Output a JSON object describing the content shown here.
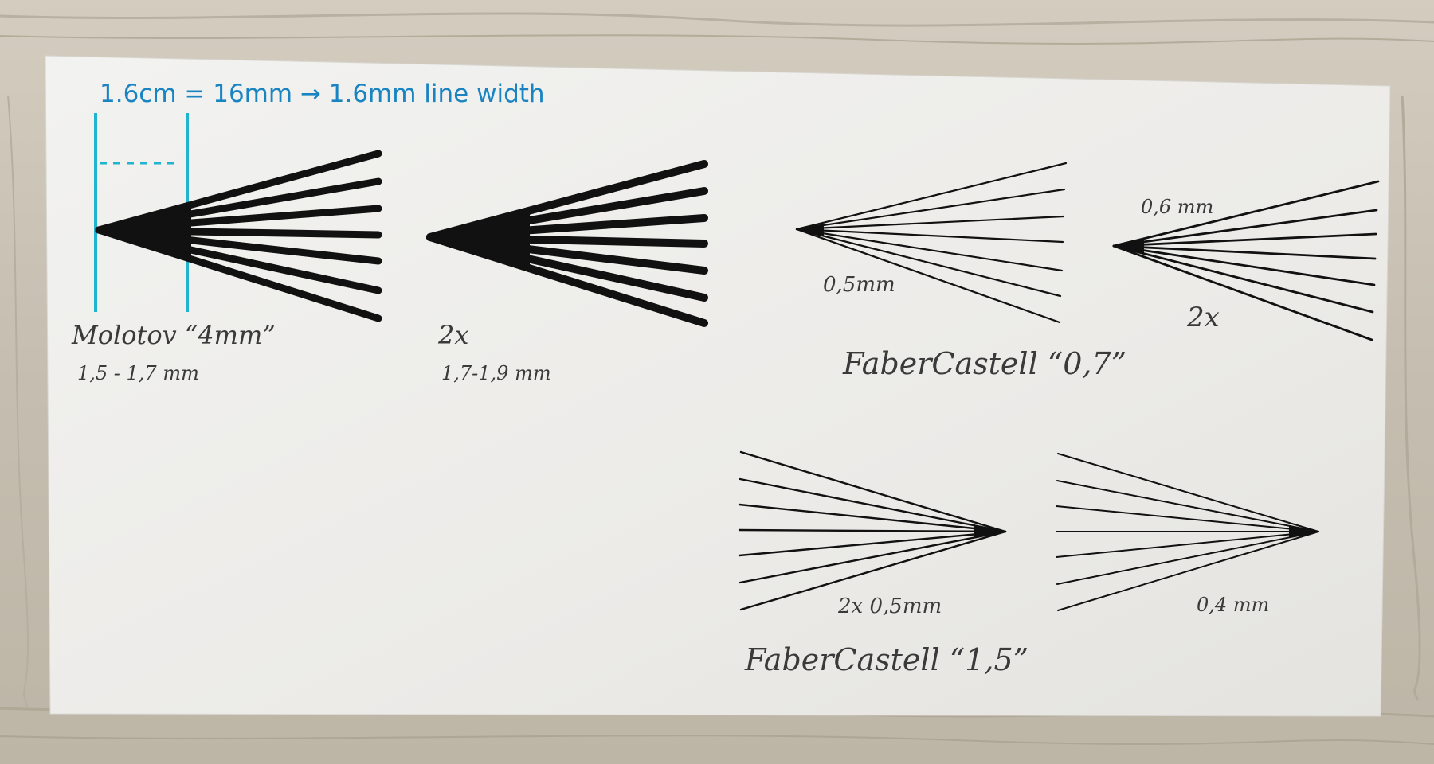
{
  "photo": {
    "background": "wooden table",
    "paper_color": "#eeeeec",
    "ink_color": "#111111",
    "annotation_color": "#1a84c2",
    "guide_color": "#20b4d0"
  },
  "annotation": {
    "text": "1.6cm = 16mm → 1.6mm line width"
  },
  "labels": {
    "molotov": "Molotov “4mm”",
    "molotov_width": "1,5 - 1,7 mm",
    "molotov_2x": "2x",
    "molotov_2x_width": "1,7-1,9 mm",
    "fc07_width": "0,5mm",
    "fc07_2x_width": "0,6 mm",
    "fc07_2x": "2x",
    "fc07_name": "FaberCastell “0,7”",
    "fc15_2x_width": "2x 0,5mm",
    "fc15_width": "0,4 mm",
    "fc15_name": "FaberCastell “1,5”"
  }
}
